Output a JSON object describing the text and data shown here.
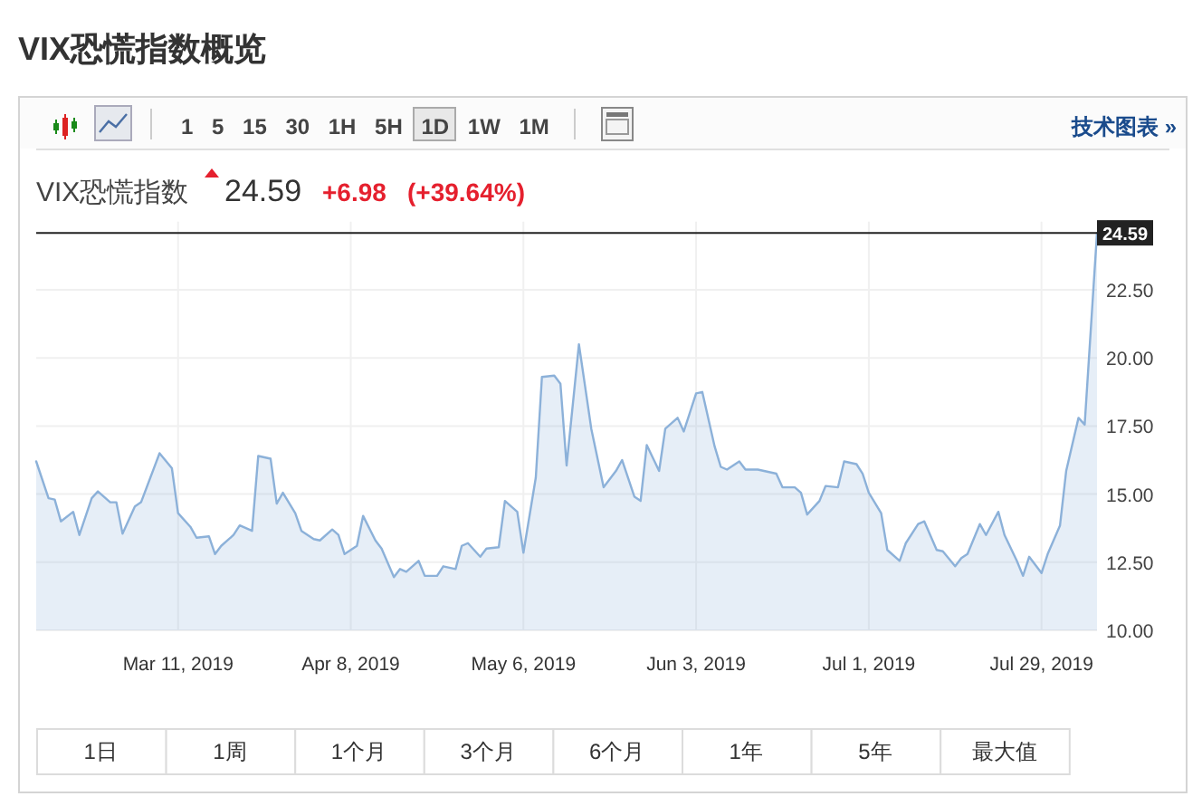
{
  "chart_data": {
    "type": "area",
    "title": "VIX恐慌指数概览",
    "subtitle": "VIX恐慌指数",
    "annotations": [
      "24.59",
      "+6.98",
      "(+39.64%)",
      "1 5 15 30 1H 5H 1D 1W 1M",
      "技术图表 »",
      "1日",
      "1周",
      "1个月",
      "3个月",
      "6个月",
      "1年",
      "5年",
      "最大值"
    ],
    "x": [
      "2019-02-16",
      "2019-02-18",
      "2019-02-19",
      "2019-02-20",
      "2019-02-22",
      "2019-02-23",
      "2019-02-25",
      "2019-02-26",
      "2019-02-28",
      "2019-03-01",
      "2019-03-02",
      "2019-03-04",
      "2019-03-05",
      "2019-03-08",
      "2019-03-10",
      "2019-03-11",
      "2019-03-13",
      "2019-03-14",
      "2019-03-16",
      "2019-03-17",
      "2019-03-18",
      "2019-03-20",
      "2019-03-21",
      "2019-03-23",
      "2019-03-24",
      "2019-03-26",
      "2019-03-27",
      "2019-03-28",
      "2019-03-30",
      "2019-03-31",
      "2019-04-02",
      "2019-04-03",
      "2019-04-05",
      "2019-04-06",
      "2019-04-07",
      "2019-04-09",
      "2019-04-10",
      "2019-04-12",
      "2019-04-13",
      "2019-04-15",
      "2019-04-16",
      "2019-04-17",
      "2019-04-19",
      "2019-04-20",
      "2019-04-22",
      "2019-04-23",
      "2019-04-25",
      "2019-04-26",
      "2019-04-27",
      "2019-04-29",
      "2019-04-30",
      "2019-05-02",
      "2019-05-03",
      "2019-05-05",
      "2019-05-06",
      "2019-05-08",
      "2019-05-09",
      "2019-05-11",
      "2019-05-12",
      "2019-05-13",
      "2019-05-15",
      "2019-05-17",
      "2019-05-19",
      "2019-05-21",
      "2019-05-22",
      "2019-05-24",
      "2019-05-25",
      "2019-05-26",
      "2019-05-28",
      "2019-05-29",
      "2019-05-31",
      "2019-06-01",
      "2019-06-03",
      "2019-06-04",
      "2019-06-06",
      "2019-06-07",
      "2019-06-08",
      "2019-06-10",
      "2019-06-11",
      "2019-06-13",
      "2019-06-14",
      "2019-06-16",
      "2019-06-17",
      "2019-06-19",
      "2019-06-20",
      "2019-06-21",
      "2019-06-23",
      "2019-06-24",
      "2019-06-26",
      "2019-06-27",
      "2019-06-29",
      "2019-06-30",
      "2019-07-01",
      "2019-07-03",
      "2019-07-04",
      "2019-07-06",
      "2019-07-07",
      "2019-07-09",
      "2019-07-10",
      "2019-07-12",
      "2019-07-13",
      "2019-07-15",
      "2019-07-16",
      "2019-07-17",
      "2019-07-19",
      "2019-07-20",
      "2019-07-22",
      "2019-07-23",
      "2019-07-25",
      "2019-07-26",
      "2019-07-27",
      "2019-07-29",
      "2019-07-30",
      "2019-08-01",
      "2019-08-02",
      "2019-08-04",
      "2019-08-05",
      "2019-08-07"
    ],
    "series": [
      {
        "color": "#8cb1d9",
        "values": [
          16.2,
          14.85,
          14.8,
          14.0,
          14.35,
          13.5,
          14.85,
          15.1,
          14.7,
          14.7,
          13.55,
          14.55,
          14.7,
          16.5,
          15.95,
          14.3,
          13.8,
          13.4,
          13.45,
          12.8,
          13.1,
          13.5,
          13.85,
          13.65,
          16.4,
          16.3,
          14.65,
          15.05,
          14.3,
          13.65,
          13.35,
          13.3,
          13.7,
          13.5,
          12.8,
          13.1,
          14.2,
          13.3,
          13.0,
          11.95,
          12.25,
          12.15,
          12.55,
          12.0,
          12.0,
          12.35,
          12.25,
          13.1,
          13.2,
          12.7,
          13.0,
          13.05,
          14.75,
          14.35,
          12.85,
          15.6,
          19.3,
          19.35,
          19.05,
          16.05,
          20.5,
          17.4,
          15.25,
          15.85,
          16.25,
          14.9,
          14.75,
          16.8,
          15.85,
          17.4,
          17.8,
          17.3,
          18.7,
          18.75,
          16.75,
          16.0,
          15.9,
          16.2,
          15.9,
          15.9,
          15.85,
          15.75,
          15.25,
          15.25,
          15.05,
          14.25,
          14.75,
          15.3,
          15.25,
          16.2,
          16.1,
          15.75,
          15.05,
          14.3,
          12.95,
          12.55,
          13.2,
          13.9,
          14.0,
          12.95,
          12.9,
          12.35,
          12.65,
          12.8,
          13.9,
          13.5,
          14.35,
          13.5,
          12.55,
          12.0,
          12.7,
          12.1,
          12.8,
          13.85,
          15.85,
          17.8,
          17.55,
          24.59
        ]
      }
    ],
    "xlim": [
      "2019-02-16",
      "2019-08-07"
    ],
    "xticks": [
      {
        "value": "2019-03-11",
        "label": "Mar 11, 2019"
      },
      {
        "value": "2019-04-08",
        "label": "Apr 8, 2019"
      },
      {
        "value": "2019-05-06",
        "label": "May 6, 2019"
      },
      {
        "value": "2019-06-03",
        "label": "Jun 3, 2019"
      },
      {
        "value": "2019-07-01",
        "label": "Jul 1, 2019"
      },
      {
        "value": "2019-07-29",
        "label": "Jul 29, 2019"
      }
    ],
    "ylim": [
      10,
      25
    ],
    "yticks": [
      {
        "value": 10,
        "label": "10.00"
      },
      {
        "value": 12.5,
        "label": "12.50"
      },
      {
        "value": 15,
        "label": "15.00"
      },
      {
        "value": 17.5,
        "label": "17.50"
      },
      {
        "value": 20,
        "label": "20.00"
      },
      {
        "value": 22.5,
        "label": "22.50"
      }
    ],
    "ref_lines": [
      {
        "axis": "y",
        "value": 24.59,
        "label": "24.59",
        "color": "#222222"
      }
    ],
    "grid": true
  }
}
